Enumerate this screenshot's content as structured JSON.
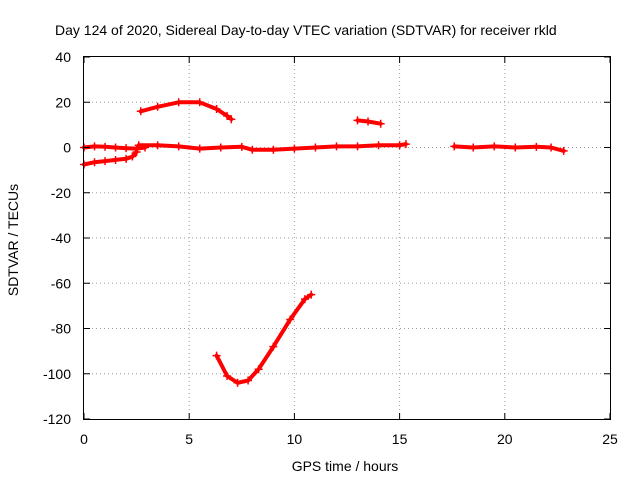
{
  "chart_data": {
    "type": "scatter",
    "title": "Day 124 of 2020, Sidereal Day-to-day VTEC variation (SDTVAR) for receiver rkld",
    "xlabel": "GPS time / hours",
    "ylabel": "SDTVAR / TECUs",
    "xlim": [
      0,
      25
    ],
    "ylim": [
      -120,
      40
    ],
    "x_ticks": [
      "0",
      "5",
      "10",
      "15",
      "20",
      "25"
    ],
    "y_ticks": [
      "40",
      "20",
      "0",
      "-20",
      "-40",
      "-60",
      "-80",
      "-100",
      "-120"
    ],
    "grid": true,
    "marker_color": "#ff0000",
    "series": [
      {
        "name": "arc-1",
        "x": [
          0,
          0.5,
          1.0,
          1.5,
          2.0,
          2.5,
          2.9
        ],
        "y": [
          0,
          0.5,
          0.3,
          0,
          -0.3,
          -0.5,
          0
        ]
      },
      {
        "name": "arc-2",
        "x": [
          0,
          0.5,
          1.0,
          1.5,
          2.0,
          2.3,
          2.5
        ],
        "y": [
          -7.5,
          -6.5,
          -6,
          -5.5,
          -5,
          -4,
          -2
        ]
      },
      {
        "name": "arc-3",
        "x": [
          2.7,
          3.5,
          4.5,
          5.5,
          6.3,
          6.8,
          7.0
        ],
        "y": [
          16,
          18,
          20,
          20,
          17,
          14,
          12.5
        ]
      },
      {
        "name": "arc-4",
        "x": [
          2.6,
          3.5,
          4.5,
          5.5,
          6.5,
          7.5,
          8.0,
          9.0,
          10.0,
          11.0,
          12.0,
          13.0,
          14.0,
          15.0,
          15.3
        ],
        "y": [
          1,
          1,
          0.5,
          -0.5,
          0,
          0.3,
          -1,
          -1,
          -0.5,
          0,
          0.5,
          0.5,
          1,
          1,
          1.5
        ]
      },
      {
        "name": "arc-5",
        "x": [
          6.3,
          6.8,
          7.3,
          7.8,
          8.3,
          9.0,
          9.8,
          10.5,
          10.8
        ],
        "y": [
          -92,
          -101,
          -104,
          -103,
          -98,
          -88,
          -76,
          -67,
          -65
        ]
      },
      {
        "name": "arc-6",
        "x": [
          13.0,
          13.5,
          14.1
        ],
        "y": [
          12,
          11.5,
          10.5
        ]
      },
      {
        "name": "arc-7",
        "x": [
          17.6,
          18.5,
          19.5,
          20.5,
          21.5,
          22.2,
          22.8
        ],
        "y": [
          0.5,
          0,
          0.5,
          0,
          0.3,
          0,
          -1.5
        ]
      }
    ]
  }
}
